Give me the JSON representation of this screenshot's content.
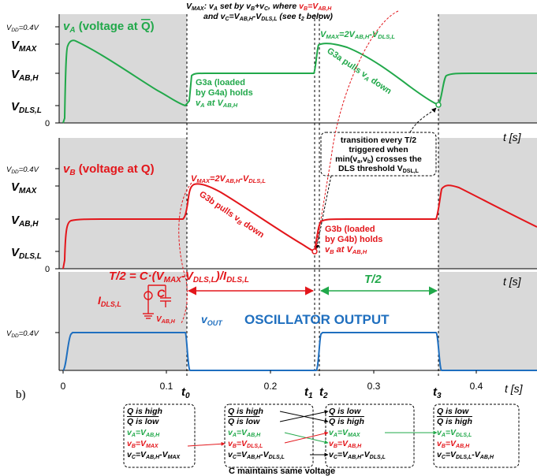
{
  "colors": {
    "green": "#21a84a",
    "red": "#e3161b",
    "blue": "#1f6fbf",
    "shade": "#d9d9d9",
    "black": "#000000"
  },
  "header": {
    "line1_a": "V",
    "line1_a_sub": "MAX",
    "line1_b": ": v",
    "line1_b_sub": "A",
    "line1_c": " set by v",
    "line1_c_sub": "B",
    "line1_d": "+v",
    "line1_d_sub": "C",
    "line1_e": ", where ",
    "line1_red": "v",
    "line1_red_sub": "B",
    "line1_red2": "=V",
    "line1_red2_sub": "AB,H",
    "line2_a": "and v",
    "line2_a_sub": "C",
    "line2_b": "=V",
    "line2_b_sub": "AB,H",
    "line2_c": "-V",
    "line2_c_sub": "DLS,L",
    "line2_d": " (see t",
    "line2_d_sub": "2",
    "line2_e": " below)"
  },
  "panelA": {
    "vdd_label": "V",
    "vdd_sub": "DD",
    "vdd_value": "=0.4V",
    "title_v": "v",
    "title_sub": "A",
    "title_rest": " (voltage at ",
    "title_q": "Q",
    "title_end": ")",
    "ylabels": [
      {
        "m": "V",
        "s": "MAX"
      },
      {
        "m": "V",
        "s": "AB,H"
      },
      {
        "m": "V",
        "s": "DLS,L"
      }
    ],
    "zero": "0",
    "vmax_note": "V",
    "vmax_note_sub": "MAX",
    "vmax_note2": "=2V",
    "vmax_note2_sub": "AB,H",
    "vmax_note3": "-V",
    "vmax_note3_sub": "DLS,L",
    "g3a_1": "G3a (loaded",
    "g3a_2": "by G4a) holds",
    "g3a_3a": "v",
    "g3a_3b": "A",
    "g3a_3c": " at V",
    "g3a_3d": "AB,H",
    "pulls": "G3a pulls v",
    "pulls_sub": "A",
    "pulls_end": " down",
    "taxis": "t [s]"
  },
  "callout": {
    "l1": "transition every T/2",
    "l2": "triggered when",
    "l3a": "min(v",
    "l3b": "a",
    "l3c": ",v",
    "l3d": "b",
    "l3e": ") crosses the",
    "l4a": "DLS threshold V",
    "l4b": "DSL,L"
  },
  "panelB": {
    "vdd_label": "V",
    "vdd_sub": "DD",
    "vdd_value": "=0.4V",
    "title_v": "v",
    "title_sub": "B",
    "title_rest": " (voltage at Q)",
    "ylabels": [
      {
        "m": "V",
        "s": "MAX"
      },
      {
        "m": "V",
        "s": "AB,H"
      },
      {
        "m": "V",
        "s": "DLS,L"
      }
    ],
    "zero": "0",
    "vmax_note": "V",
    "vmax_note_sub": "MAX",
    "vmax_note2": "=2V",
    "vmax_note2_sub": "AB,H",
    "vmax_note3": "-V",
    "vmax_note3_sub": "DLS,L",
    "pulls": "G3b pulls v",
    "pulls_sub": "B",
    "pulls_end": " down",
    "g3b_1": "G3b (loaded",
    "g3b_2": "by G4b) holds",
    "g3b_3a": "v",
    "g3b_3b": "B",
    "g3b_3c": " at V",
    "g3b_3d": "AB,H",
    "taxis": "t [s]"
  },
  "period": {
    "formula_a": "T/2 = C·(V",
    "formula_b": "MAX",
    "formula_c": "-V",
    "formula_d": "DLS,L",
    "formula_e": ")/I",
    "formula_f": "DLS,L",
    "half": "T/2",
    "cap_I": "I",
    "cap_I_sub": "DLS,L",
    "cap_C": "C",
    "cap_V": "V",
    "cap_V_sub": "AB,H"
  },
  "panelC": {
    "vdd_label": "V",
    "vdd_sub": "DD",
    "vdd_value": "=0.4V",
    "vout": "v",
    "vout_sub": "OUT",
    "title": "OSCILLATOR OUTPUT",
    "taxis": "t [s]",
    "xticks": [
      "0",
      "0.1",
      "0.2",
      "0.3",
      "0.4"
    ],
    "marks": [
      {
        "m": "t",
        "s": "0"
      },
      {
        "m": "t",
        "s": "1"
      },
      {
        "m": "t",
        "s": "2"
      },
      {
        "m": "t",
        "s": "3"
      }
    ],
    "corner": "b)"
  },
  "states": {
    "box1": {
      "r1": "Q is high",
      "r2": "Q is low",
      "r3": "v",
      "r3s": "A",
      "r3e": "=V",
      "r3e_s": "AB,H",
      "r4": "v",
      "r4s": "B",
      "r4e": "=V",
      "r4e_s": "MAX",
      "r5": "v",
      "r5s": "C",
      "r5e": "=V",
      "r5e_s": "AB,H",
      "r5f": "-V",
      "r5f_s": "MAX"
    },
    "box2": {
      "r1": "Q is high",
      "r2": "Q is low",
      "r3": "v",
      "r3s": "A",
      "r3e": "=V",
      "r3e_s": "AB,H",
      "r4": "v",
      "r4s": "B",
      "r4e": "=V",
      "r4e_s": "DLS,L",
      "r5": "v",
      "r5s": "C",
      "r5e": "=V",
      "r5e_s": "AB,H",
      "r5f": "-V",
      "r5f_s": "DLS,L"
    },
    "box3": {
      "r1": "Q is low",
      "r2": "Q is high",
      "r3": "v",
      "r3s": "A",
      "r3e": "=V",
      "r3e_s": "MAX",
      "r4": "v",
      "r4s": "B",
      "r4e": "=V",
      "r4e_s": "AB,H",
      "r5": "v",
      "r5s": "C",
      "r5e": "=V",
      "r5e_s": "AB,H",
      "r5f": "-V",
      "r5f_s": "DLS,L"
    },
    "box4": {
      "r1": "Q is low",
      "r2": "Q is high",
      "r3": "v",
      "r3s": "A",
      "r3e": "=V",
      "r3e_s": "DLS,L",
      "r4": "v",
      "r4s": "B",
      "r4e": "=V",
      "r4e_s": "AB,H",
      "r5": "v",
      "r5s": "C",
      "r5e": "=V",
      "r5e_s": "DLS,L",
      "r5f": "-V",
      "r5f_s": "AB,H"
    },
    "footer": "C maintains same voltage"
  }
}
